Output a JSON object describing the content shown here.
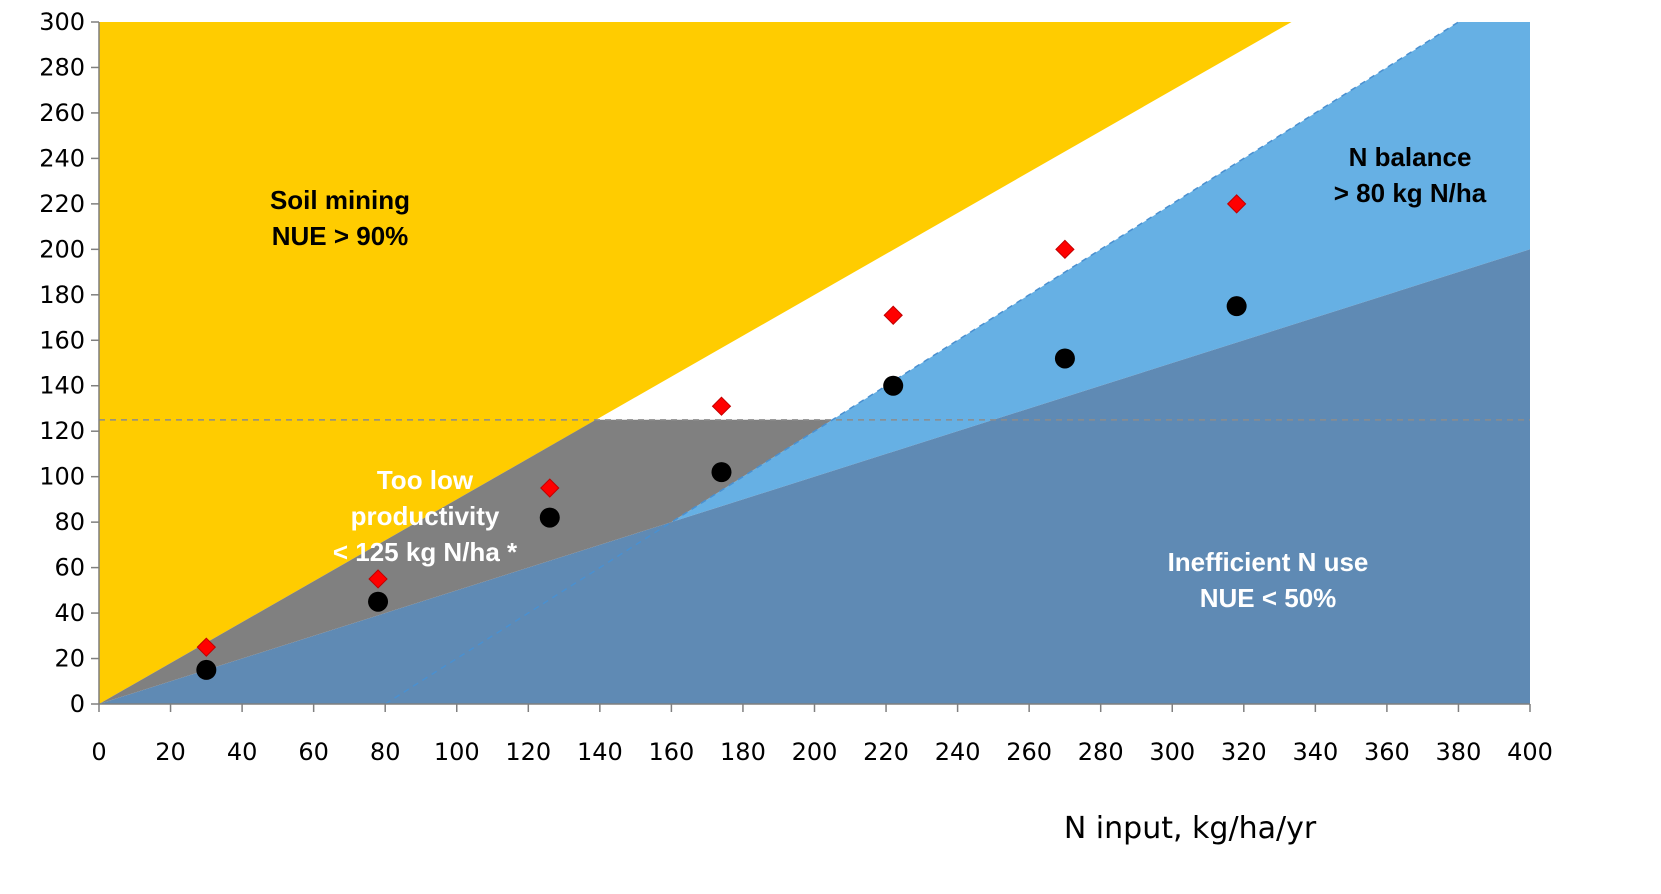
{
  "chart_data": {
    "type": "scatter",
    "title": "",
    "xlabel": "N input, kg/ha/yr",
    "ylabel": "",
    "xlim": [
      0,
      400
    ],
    "ylim": [
      0,
      300
    ],
    "x_ticks": [
      "0",
      "20",
      "40",
      "60",
      "80",
      "100",
      "120",
      "140",
      "160",
      "180",
      "200",
      "220",
      "240",
      "260",
      "280",
      "300",
      "320",
      "340",
      "360",
      "380",
      "400"
    ],
    "y_ticks": [
      "0",
      "20",
      "40",
      "60",
      "80",
      "100",
      "120",
      "140",
      "160",
      "180",
      "200",
      "220",
      "240",
      "260",
      "280",
      "300"
    ],
    "grid": false,
    "zones": [
      {
        "label_lines": [
          "Soil mining",
          "NUE > 90%"
        ],
        "color": "#FFCC00",
        "text_color": "#000000"
      },
      {
        "label_lines": [
          "N balance",
          "> 80 kg N/ha"
        ],
        "color": "#66B0E4",
        "text_color": "#000000"
      },
      {
        "label_lines": [
          "Inefficient N use",
          "NUE < 50%"
        ],
        "color": "#5F8AB4",
        "text_color": "#FFFFFF"
      },
      {
        "label_lines": [
          "Too low",
          "productivity",
          "< 125 kg N/ha *"
        ],
        "color": "#808080",
        "text_color": "#FFFFFF"
      }
    ],
    "reference_lines": {
      "min_productivity_y": 125,
      "nue_max": 0.9,
      "nue_min": 0.5,
      "n_surplus_max": 80
    },
    "series": [
      {
        "marker": "diamond",
        "color": "#FF0000",
        "x": [
          30,
          78,
          126,
          174,
          222,
          270,
          318
        ],
        "y": [
          25,
          55,
          95,
          131,
          171,
          200,
          220
        ]
      },
      {
        "marker": "circle",
        "color": "#000000",
        "x": [
          30,
          78,
          126,
          174,
          222,
          270,
          318
        ],
        "y": [
          15,
          45,
          82,
          102,
          140,
          152,
          175
        ]
      }
    ]
  }
}
